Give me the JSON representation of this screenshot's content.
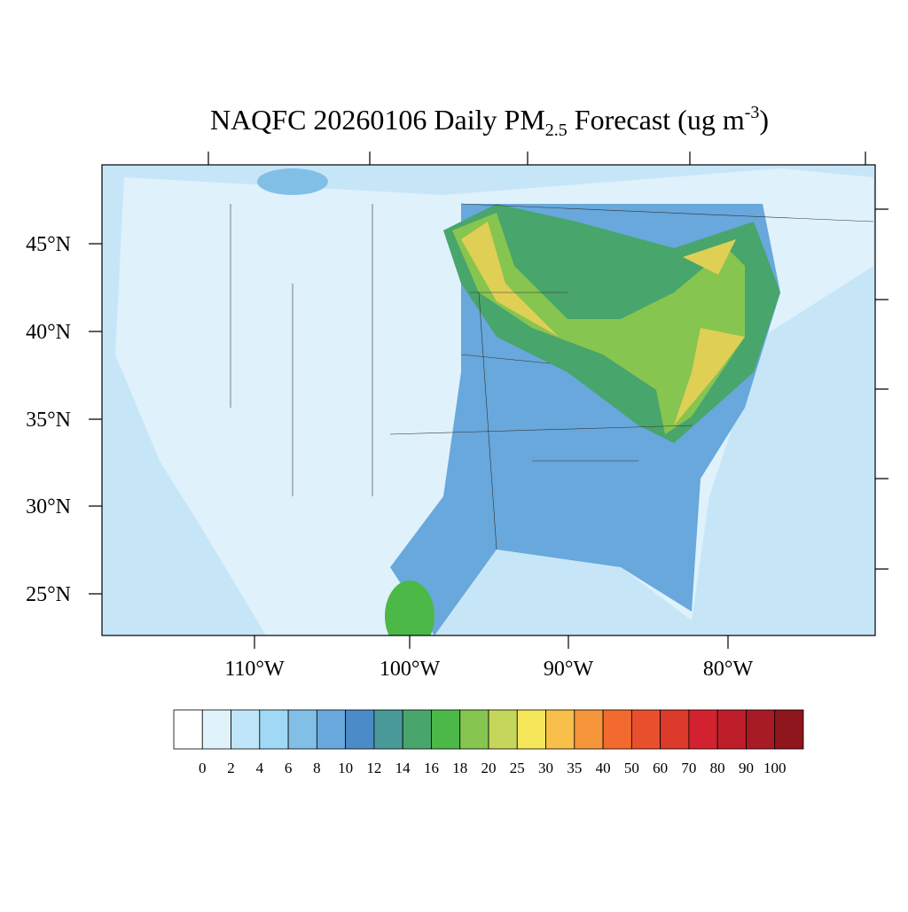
{
  "title": {
    "prefix": "NAQFC 20260106 Daily PM",
    "subscript": "2.5",
    "middle": " Forecast (ug m",
    "superscript": "-3",
    "suffix": ")"
  },
  "lat_labels": [
    "45°N",
    "40°N",
    "35°N",
    "30°N",
    "25°N"
  ],
  "lon_labels": [
    "110°W",
    "100°W",
    "90°W",
    "80°W"
  ],
  "colorbar": {
    "levels": [
      "0",
      "2",
      "4",
      "6",
      "8",
      "10",
      "12",
      "14",
      "16",
      "18",
      "20",
      "25",
      "30",
      "35",
      "40",
      "50",
      "60",
      "70",
      "80",
      "90",
      "100"
    ],
    "colors": [
      "#ffffff",
      "#e0f3fb",
      "#bfe6f8",
      "#a0d8f5",
      "#82bfe6",
      "#68a8dc",
      "#4a8bc8",
      "#4a9a9a",
      "#48a56c",
      "#4cb848",
      "#86c550",
      "#c4d75a",
      "#f6e659",
      "#f8bf4a",
      "#f6963a",
      "#f26a2d",
      "#e8502d",
      "#dc3a2a",
      "#d22230",
      "#bd1e2a",
      "#a71b24",
      "#8e161c"
    ]
  }
}
